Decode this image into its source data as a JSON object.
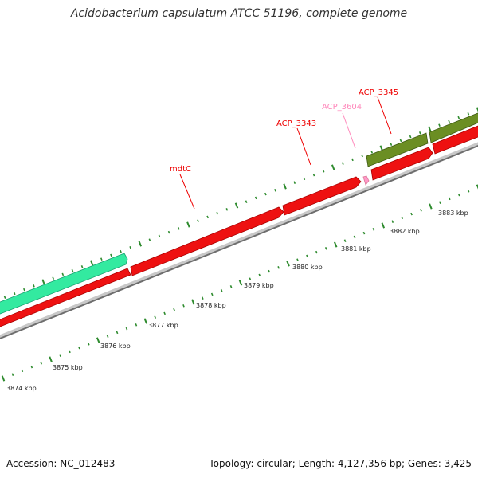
{
  "title": "Acidobacterium capsulatum ATCC 51196, complete genome",
  "colors": {
    "forward_gene": "#ff2a00",
    "reverse_gene": "#ff0000",
    "teal_gene": "#33e8a0",
    "olive_gene": "#6b8e23",
    "pink_gene": "#ff99c8",
    "tick_green": "#2e8b2e",
    "backbone": "#7a7a7a"
  },
  "genes": [
    {
      "label": "mdtC",
      "color": "#ff0000"
    },
    {
      "label": "ACP_3343",
      "color": "#ff0000"
    },
    {
      "label": "ACP_3604",
      "color": "#ff88bb"
    },
    {
      "label": "ACP_3345",
      "color": "#ee0000"
    }
  ],
  "kbp_ticks": [
    "3874 kbp",
    "3875 kbp",
    "3876 kbp",
    "3877 kbp",
    "3878 kbp",
    "3879 kbp",
    "3880 kbp",
    "3881 kbp",
    "3882 kbp",
    "3883 kbp"
  ],
  "footer": {
    "accession": "Accession: NC_012483",
    "summary": "Topology: circular; Length: 4,127,356 bp; Genes: 3,425"
  }
}
